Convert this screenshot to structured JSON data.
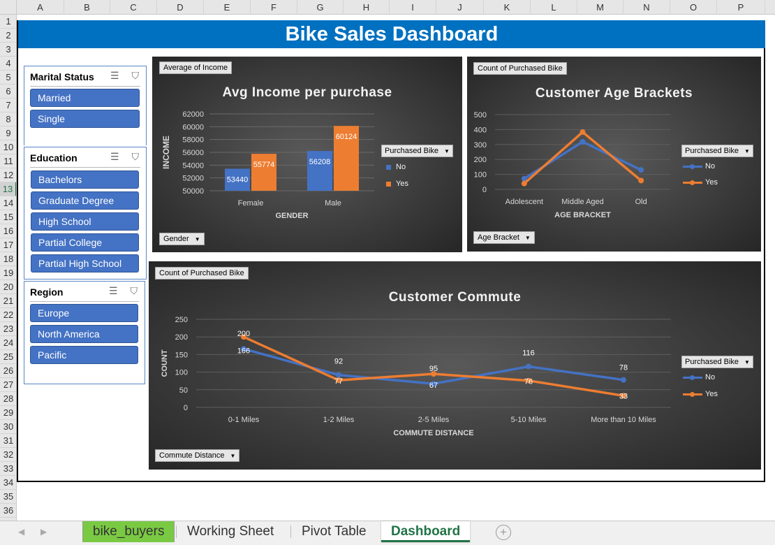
{
  "sheet": {
    "columns": [
      "A",
      "B",
      "C",
      "D",
      "E",
      "F",
      "G",
      "H",
      "I",
      "J",
      "K",
      "L",
      "M",
      "N",
      "O",
      "P"
    ],
    "rows": [
      "1",
      "2",
      "3",
      "4",
      "5",
      "6",
      "7",
      "8",
      "9",
      "10",
      "11",
      "12",
      "13",
      "14",
      "15",
      "16",
      "17",
      "18",
      "19",
      "20",
      "21",
      "22",
      "23",
      "24",
      "25",
      "26",
      "27",
      "28",
      "29",
      "30",
      "31",
      "32",
      "33",
      "34",
      "35",
      "36"
    ],
    "active_row": "13"
  },
  "dashboard": {
    "title": "Bike Sales Dashboard"
  },
  "slicers": {
    "marital": {
      "title": "Marital Status",
      "items": [
        "Married",
        "Single"
      ]
    },
    "education": {
      "title": "Education",
      "items": [
        "Bachelors",
        "Graduate Degree",
        "High School",
        "Partial College",
        "Partial High School"
      ]
    },
    "region": {
      "title": "Region",
      "items": [
        "Europe",
        "North America",
        "Pacific"
      ]
    },
    "icons": {
      "multiselect": "multi-select-icon",
      "clear": "clear-filter-icon"
    }
  },
  "colors": {
    "no": "#4472c4",
    "yes": "#ed7d31",
    "title_bg": "#0070c0",
    "tab_green": "#7ac943"
  },
  "charts": {
    "income": {
      "value_field": "Average of Income",
      "axis_field": "Gender",
      "legend_field": "Purchased Bike",
      "legend": [
        "No",
        "Yes"
      ]
    },
    "age": {
      "value_field": "Count of Purchased Bike",
      "axis_field": "Age Bracket",
      "legend_field": "Purchased Bike",
      "legend": [
        "No",
        "Yes"
      ]
    },
    "commute": {
      "value_field": "Count of Purchased Bike",
      "axis_field": "Commute Distance",
      "legend_field": "Purchased Bike",
      "legend": [
        "No",
        "Yes"
      ]
    }
  },
  "chart_data": [
    {
      "type": "bar",
      "title": "Avg Income per purchase",
      "xlabel": "GENDER",
      "ylabel": "INCOME",
      "categories": [
        "Female",
        "Male"
      ],
      "series": [
        {
          "name": "No",
          "values": [
            53440,
            56208
          ]
        },
        {
          "name": "Yes",
          "values": [
            55774,
            60124
          ]
        }
      ],
      "ylim": [
        50000,
        62000
      ],
      "yticks": [
        "62000",
        "60000",
        "58000",
        "56000",
        "54000",
        "52000",
        "50000"
      ],
      "grid": true,
      "legend_position": "right"
    },
    {
      "type": "line",
      "title": "Customer Age Brackets",
      "xlabel": "AGE BRACKET",
      "ylabel": "",
      "categories": [
        "Adolescent",
        "Middle Aged",
        "Old"
      ],
      "series": [
        {
          "name": "No",
          "values": [
            71,
            318,
            130
          ]
        },
        {
          "name": "Yes",
          "values": [
            39,
            383,
            59
          ]
        }
      ],
      "ylim": [
        0,
        500
      ],
      "yticks": [
        "500",
        "400",
        "300",
        "200",
        "100",
        "0"
      ],
      "grid": true,
      "legend_position": "right"
    },
    {
      "type": "line",
      "title": "Customer Commute",
      "xlabel": "COMMUTE DISTANCE",
      "ylabel": "COUNT",
      "categories": [
        "0-1 Miles",
        "1-2 Miles",
        "2-5 Miles",
        "5-10 Miles",
        "More than 10 Miles"
      ],
      "series": [
        {
          "name": "No",
          "values": [
            166,
            92,
            67,
            116,
            78
          ]
        },
        {
          "name": "Yes",
          "values": [
            200,
            77,
            95,
            76,
            33
          ]
        }
      ],
      "ylim": [
        0,
        250
      ],
      "yticks": [
        "250",
        "200",
        "150",
        "100",
        "50",
        "0"
      ],
      "grid": true,
      "legend_position": "right"
    }
  ],
  "tabs": [
    {
      "label": "bike_buyers",
      "style": "green"
    },
    {
      "label": "Working Sheet",
      "style": "normal"
    },
    {
      "label": "Pivot Table",
      "style": "normal"
    },
    {
      "label": "Dashboard",
      "style": "active"
    }
  ]
}
